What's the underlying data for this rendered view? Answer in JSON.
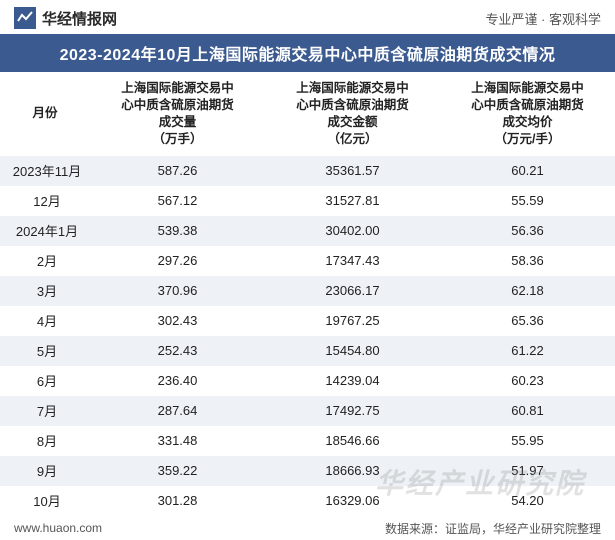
{
  "header": {
    "logo_text": "华经情报网",
    "tagline": "专业严谨 · 客观科学",
    "logo_color": "#3b5a8f"
  },
  "title": "2023-2024年10月上海国际能源交易中心中质含硫原油期货成交情况",
  "columns": [
    "月份",
    "上海国际能源交易中心中质含硫原油期货成交量（万手）",
    "上海国际能源交易中心中质含硫原油期货成交金额（亿元）",
    "上海国际能源交易中心中质含硫原油期货成交均价（万元/手）"
  ],
  "column_header_lines": [
    [
      "月份"
    ],
    [
      "上海国际能源交易中",
      "心中质含硫原油期货",
      "成交量",
      "（万手）"
    ],
    [
      "上海国际能源交易中",
      "心中质含硫原油期货",
      "成交金额",
      "（亿元）"
    ],
    [
      "上海国际能源交易中",
      "心中质含硫原油期货",
      "成交均价",
      "（万元/手）"
    ]
  ],
  "rows": [
    {
      "month": "2023年11月",
      "vol": "587.26",
      "amt": "35361.57",
      "avg": "60.21"
    },
    {
      "month": "12月",
      "vol": "567.12",
      "amt": "31527.81",
      "avg": "55.59"
    },
    {
      "month": "2024年1月",
      "vol": "539.38",
      "amt": "30402.00",
      "avg": "56.36"
    },
    {
      "month": "2月",
      "vol": "297.26",
      "amt": "17347.43",
      "avg": "58.36"
    },
    {
      "month": "3月",
      "vol": "370.96",
      "amt": "23066.17",
      "avg": "62.18"
    },
    {
      "month": "4月",
      "vol": "302.43",
      "amt": "19767.25",
      "avg": "65.36"
    },
    {
      "month": "5月",
      "vol": "252.43",
      "amt": "15454.80",
      "avg": "61.22"
    },
    {
      "month": "6月",
      "vol": "236.40",
      "amt": "14239.04",
      "avg": "60.23"
    },
    {
      "month": "7月",
      "vol": "287.64",
      "amt": "17492.75",
      "avg": "60.81"
    },
    {
      "month": "8月",
      "vol": "331.48",
      "amt": "18546.66",
      "avg": "55.95"
    },
    {
      "month": "9月",
      "vol": "359.22",
      "amt": "18666.93",
      "avg": "51.97"
    },
    {
      "month": "10月",
      "vol": "301.28",
      "amt": "16329.06",
      "avg": "54.20"
    }
  ],
  "footer": {
    "site": "www.huaon.com",
    "source": "数据来源：证监局，华经产业研究院整理"
  },
  "watermark": "华经产业研究院",
  "styling": {
    "title_bg": "#3b5a8f",
    "row_even_bg": "#eef2f7",
    "row_odd_bg": "#ffffff",
    "text_color": "#222222",
    "header_font_size": 12.5,
    "body_font_size": 13,
    "title_font_size": 16
  }
}
